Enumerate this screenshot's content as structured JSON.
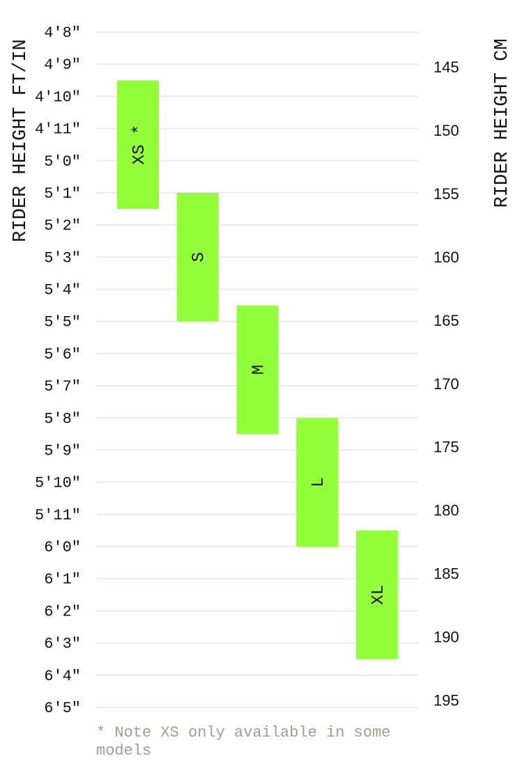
{
  "chart_data": {
    "type": "bar",
    "subtype": "floating-range-bar",
    "ylabel_left": "RIDER HEIGHT FT/IN",
    "ylabel_right": "RIDER HEIGHT CM",
    "left_ticks": [
      "4'8\"",
      "4'9\"",
      "4'10\"",
      "4'11\"",
      "5'0\"",
      "5'1\"",
      "5'2\"",
      "5'3\"",
      "5'4\"",
      "5'5\"",
      "5'6\"",
      "5'7\"",
      "5'8\"",
      "5'9\"",
      "5'10\"",
      "5'11\"",
      "6'0\"",
      "6'1\"",
      "6'2\"",
      "6'3\"",
      "6'4\"",
      "6'5\""
    ],
    "left_range_inches": [
      56,
      77
    ],
    "right_ticks": [
      "145",
      "150",
      "155",
      "160",
      "165",
      "170",
      "175",
      "180",
      "185",
      "190",
      "195"
    ],
    "right_tick_values_cm": [
      145,
      150,
      155,
      160,
      165,
      170,
      175,
      180,
      185,
      190,
      195
    ],
    "categories": [
      "XS *",
      "S",
      "M",
      "L",
      "XL"
    ],
    "ranges_inches": [
      [
        57.5,
        61.5
      ],
      [
        61,
        65
      ],
      [
        64.5,
        68.5
      ],
      [
        68,
        72
      ],
      [
        71.5,
        75.5
      ]
    ],
    "grid": true,
    "bar_color": "#93ff3b",
    "grid_color": "#ebebeb",
    "note": "* Note XS only available in some models",
    "note_color": "#a39c8e"
  }
}
